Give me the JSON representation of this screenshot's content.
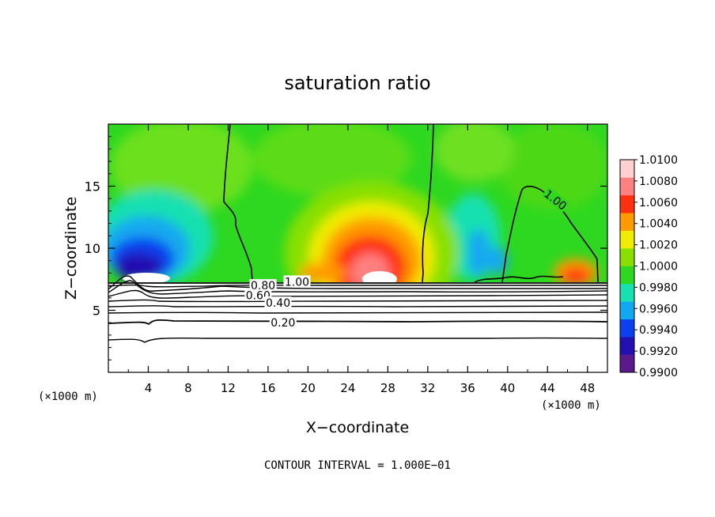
{
  "chart_data": {
    "type": "heatmap",
    "title": "saturation ratio",
    "xlabel": "X−coordinate",
    "ylabel": "Z−coordinate",
    "x_unit_left": "(×1000 m)",
    "x_unit_right": "(×1000 m)",
    "footer": "CONTOUR INTERVAL = 1.000E−01",
    "xlim": [
      0,
      50
    ],
    "ylim": [
      0,
      20
    ],
    "x_ticks": [
      4,
      8,
      12,
      16,
      20,
      24,
      28,
      32,
      36,
      40,
      44,
      48
    ],
    "x_tick_labels": [
      "4",
      "8",
      "12",
      "16",
      "20",
      "24",
      "28",
      "32",
      "36",
      "40",
      "44",
      "48"
    ],
    "y_ticks": [
      5,
      10,
      15
    ],
    "y_tick_labels": [
      "5",
      "10",
      "15"
    ],
    "colorbar": {
      "range": [
        0.99,
        1.01
      ],
      "levels": [
        0.99,
        0.992,
        0.994,
        0.996,
        0.998,
        1.0,
        1.002,
        1.004,
        1.006,
        1.008,
        1.01
      ],
      "labels": [
        "0.9900",
        "0.9920",
        "0.9940",
        "0.9960",
        "0.9980",
        "1.0000",
        "1.0020",
        "1.0040",
        "1.0060",
        "1.0080",
        "1.0100"
      ],
      "colors": [
        "#5a1a8c",
        "#2410b0",
        "#0a40ee",
        "#12a8f0",
        "#18e0b0",
        "#2ed820",
        "#88e000",
        "#f0ec00",
        "#ff9a00",
        "#ff3010",
        "#ff8080",
        "#ffd0d0"
      ]
    },
    "surface_z": 7.2,
    "contour_labels": [
      {
        "text": "1.00",
        "x": 18.9,
        "z": 7.3
      },
      {
        "text": "0.80",
        "x": 15.5,
        "z": 7.0
      },
      {
        "text": "0.60",
        "x": 15.0,
        "z": 6.2
      },
      {
        "text": "0.40",
        "x": 17.0,
        "z": 5.6
      },
      {
        "text": "0.20",
        "x": 17.5,
        "z": 4.0
      },
      {
        "text": "1.00",
        "x": 44.8,
        "z": 13.9
      }
    ]
  }
}
